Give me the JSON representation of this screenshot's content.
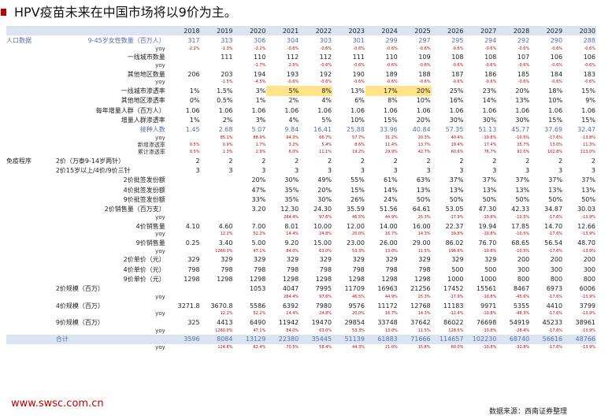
{
  "title": "HPV疫苗未来在中国市场将以9价为主。",
  "footer": {
    "url": "www.swsc.com.cn",
    "source": "数据来源：西南证券整理"
  },
  "years": [
    "2018",
    "2019",
    "2020",
    "2021",
    "2022",
    "2023",
    "2024",
    "2025",
    "2026",
    "2027",
    "2028",
    "2029",
    "2030"
  ],
  "rows": [
    {
      "sec": "人口数据",
      "label": "9-45岁女性数量（百万人）",
      "style": "blue",
      "values": [
        "317",
        "313",
        "306",
        "304",
        "303",
        "301",
        "299",
        "297",
        "295",
        "294",
        "292",
        "290",
        "288"
      ]
    },
    {
      "label": "yoy",
      "style": "yoy",
      "values": [
        "-2.2%",
        "-1.3%",
        "-2.2%",
        "-0.6%",
        "-0.6%",
        "-0.6%",
        "-0.6%",
        "-0.6%",
        "-0.6%",
        "-0.6%",
        "-0.6%",
        "-0.6%",
        "-0.6%"
      ]
    },
    {
      "label": "一线城市数量",
      "values": [
        "111",
        "110",
        "112",
        "112",
        "111",
        "110",
        "109",
        "108",
        "108",
        "107",
        "106",
        "106"
      ],
      "offset": 1
    },
    {
      "label": "yoy",
      "style": "yoy",
      "values": [
        "",
        "-1.7%",
        "2.5%",
        "-0.6%",
        "-0.6%",
        "-0.6%",
        "-0.6%",
        "-0.6%",
        "-0.6%",
        "-0.6%",
        "-0.6%",
        "-0.6%"
      ],
      "offset": 1
    },
    {
      "label": "其他地区数量",
      "values": [
        "206",
        "203",
        "194",
        "193",
        "192",
        "190",
        "189",
        "188",
        "187",
        "186",
        "185",
        "184",
        "183"
      ]
    },
    {
      "label": "yoy",
      "style": "yoy",
      "values": [
        "",
        "-1.5%",
        "-4.5%",
        "-0.6%",
        "-0.6%",
        "-0.6%",
        "-0.6%",
        "-0.6%",
        "-0.6%",
        "-0.6%",
        "-0.6%",
        "-0.6%",
        "-0.6%"
      ]
    },
    {
      "label": "一线城市渗透率",
      "values": [
        "1%",
        "1.5%",
        "3%",
        "5%",
        "8%",
        "13%",
        "17%",
        "20%",
        "25%",
        "23%",
        "20%",
        "18%",
        "15%"
      ],
      "hl": [
        3,
        4,
        6,
        7
      ]
    },
    {
      "label": "其他地区渗透率",
      "values": [
        "0%",
        "0.5%",
        "1%",
        "2%",
        "4%",
        "6%",
        "8%",
        "10%",
        "16%",
        "14%",
        "13%",
        "10%",
        "9%"
      ]
    },
    {
      "label": "每年增量人群（百万人）",
      "values": [
        "1.06",
        "1.06",
        "1.06",
        "1.06",
        "1.06",
        "1.06",
        "1.06",
        "1.06",
        "1.06",
        "1.06",
        "1.06",
        "1.06",
        "1.06"
      ]
    },
    {
      "label": "增量人群渗透率",
      "values": [
        "1%",
        "2%",
        "3%",
        "4%",
        "5%",
        "10%",
        "15%",
        "20%",
        "30%",
        "30%",
        "30%",
        "15%",
        "15%"
      ]
    },
    {
      "label": "接种人数",
      "style": "blue",
      "values": [
        "1.45",
        "2.68",
        "5.07",
        "9.84",
        "16.41",
        "25.88",
        "33.96",
        "40.84",
        "57.35",
        "51.13",
        "45.77",
        "37.69",
        "32.47"
      ]
    },
    {
      "label": "yoy",
      "style": "yoy",
      "values": [
        "",
        "85.1%",
        "88.9%",
        "94.3%",
        "66.7%",
        "57.7%",
        "31.2%",
        "20.3%",
        "40.4%",
        "-10.8%",
        "-10.5%",
        "-17.6%",
        "-13.8%"
      ]
    },
    {
      "label": "新增渗透率",
      "values": [
        "0.5%",
        "0.9%",
        "1.7%",
        "3.2%",
        "5.4%",
        "8.6%",
        "11.4%",
        "13.7%",
        "19.4%",
        "17.4%",
        "15.7%",
        "13.0%",
        "11.3%"
      ],
      "style": "yoy"
    },
    {
      "label": "累计渗透率",
      "values": [
        "0.5%",
        "1.3%",
        "2.9%",
        "6.0%",
        "11.1%",
        "19.2%",
        "29.9%",
        "42.7%",
        "60.6%",
        "76.7%",
        "91.0%",
        "102.8%",
        "113.0%"
      ],
      "style": "yoy"
    },
    {
      "sec": "免疫程序",
      "label": "2价（万泰9-14岁两针）",
      "values": [
        "2",
        "2",
        "2",
        "2",
        "2",
        "2",
        "2",
        "2",
        "2",
        "2",
        "2",
        "2",
        "2"
      ],
      "left": true
    },
    {
      "label": "2价15岁以上/4价/9价三针",
      "values": [
        "3",
        "3",
        "3",
        "3",
        "3",
        "3",
        "3",
        "3",
        "3",
        "3",
        "3",
        "3",
        "3"
      ],
      "left": true
    },
    {
      "label": "2价批签发份额",
      "values": [
        "",
        "",
        "20%",
        "30%",
        "49%",
        "55%",
        "61%",
        "63%",
        "37%",
        "37%",
        "37%",
        "37%",
        "37%"
      ]
    },
    {
      "label": "4价批签发份额",
      "values": [
        "",
        "",
        "47%",
        "35%",
        "20%",
        "15%",
        "14%",
        "13%",
        "13%",
        "13%",
        "13%",
        "13%",
        "13%"
      ]
    },
    {
      "label": "9价批签发份额",
      "values": [
        "",
        "",
        "33%",
        "35%",
        "30%",
        "26%",
        "24%",
        "50%",
        "50%",
        "50%",
        "50%",
        "50%",
        "50%"
      ]
    },
    {
      "label": "2价销售量（百万支）",
      "values": [
        "",
        "",
        "3.20",
        "12.30",
        "24.30",
        "35.59",
        "51.56",
        "64.61",
        "53.05",
        "47.30",
        "42.33",
        "34.87",
        "30.03"
      ]
    },
    {
      "label": "yoy",
      "style": "yoy",
      "values": [
        "",
        "",
        "",
        "284.4%",
        "97.6%",
        "46.5%",
        "44.9%",
        "25.3%",
        "-17.9%",
        "-10.8%",
        "-10.5%",
        "-17.6%",
        "-13.9%"
      ]
    },
    {
      "label": "4价销售量",
      "values": [
        "4.10",
        "4.60",
        "7.00",
        "8.01",
        "10.00",
        "12.00",
        "14.00",
        "16.00",
        "22.37",
        "19.94",
        "17.85",
        "14.70",
        "12.66"
      ]
    },
    {
      "label": "yoy",
      "style": "yoy",
      "values": [
        "",
        "12.2%",
        "52.2%",
        "14.4%",
        "24.8%",
        "20.0%",
        "16.7%",
        "14.3%",
        "39.8%",
        "-10.8%",
        "-10.5%",
        "-17.6%",
        "-13.9%"
      ]
    },
    {
      "label": "9价销售量",
      "values": [
        "0.25",
        "3.40",
        "5.00",
        "9.20",
        "15.00",
        "23.00",
        "26.00",
        "29.00",
        "86.02",
        "76.70",
        "68.65",
        "56.54",
        "48.70"
      ]
    },
    {
      "label": "yoy",
      "style": "yoy",
      "values": [
        "",
        "1260.0%",
        "47.1%",
        "84.0%",
        "63.0%",
        "53.3%",
        "13.0%",
        "11.5%",
        "196.6%",
        "-10.8%",
        "-10.5%",
        "-17.6%",
        "-13.9%"
      ]
    },
    {
      "label": "2价单价（元）",
      "values": [
        "329",
        "329",
        "329",
        "329",
        "329",
        "329",
        "329",
        "329",
        "329",
        "329",
        "200",
        "200",
        "200"
      ]
    },
    {
      "label": "4价单价（元）",
      "values": [
        "798",
        "798",
        "798",
        "798",
        "798",
        "798",
        "798",
        "798",
        "500",
        "500",
        "300",
        "300",
        "300"
      ]
    },
    {
      "label": "9价单价（元）",
      "values": [
        "1298",
        "1298",
        "1298",
        "1298",
        "1298",
        "1298",
        "1298",
        "1298",
        "1000",
        "1000",
        "800",
        "800",
        "800"
      ]
    },
    {
      "label": "2价规模（百万）",
      "values": [
        "",
        "",
        "1053",
        "4047",
        "7995",
        "11709",
        "16963",
        "21256",
        "17452",
        "15561",
        "8467",
        "6973",
        "6006"
      ],
      "left": true
    },
    {
      "label": "yoy",
      "style": "yoy",
      "values": [
        "",
        "",
        "",
        "284.4%",
        "97.6%",
        "46.5%",
        "44.9%",
        "25.3%",
        "-17.9%",
        "-10.8%",
        "-45.6%",
        "-17.6%",
        "-13.9%"
      ]
    },
    {
      "label": "4价规模（百万）",
      "values": [
        "3271.8",
        "3670.8",
        "5586",
        "6392",
        "7980",
        "9576",
        "11172",
        "12768",
        "11183",
        "9971",
        "5355",
        "4410",
        "3799"
      ],
      "left": true
    },
    {
      "label": "yoy",
      "style": "yoy",
      "values": [
        "",
        "12.2%",
        "52.2%",
        "14.4%",
        "24.8%",
        "20.0%",
        "16.7%",
        "14.3%",
        "-12.4%",
        "-10.8%",
        "-46.3%",
        "-17.6%",
        "-13.9%"
      ]
    },
    {
      "label": "9价规模（百万）",
      "values": [
        "325",
        "4413",
        "6490",
        "11942",
        "19470",
        "29854",
        "33748",
        "37642",
        "86022",
        "76698",
        "54919",
        "45233",
        "38961"
      ],
      "left": true
    },
    {
      "label": "yoy",
      "style": "yoy",
      "values": [
        "",
        "1260.0%",
        "47.1%",
        "84.0%",
        "63.0%",
        "53.3%",
        "13.0%",
        "11.5%",
        "128.5%",
        "-10.8%",
        "-28.4%",
        "-17.6%",
        "-13.9%"
      ]
    },
    {
      "label": "合计",
      "style": "total",
      "values": [
        "3596",
        "8084",
        "13129",
        "22380",
        "35445",
        "51139",
        "61883",
        "71666",
        "114657",
        "102230",
        "68740",
        "56616",
        "48766"
      ],
      "left": true
    },
    {
      "label": "yoy",
      "style": "yoy",
      "values": [
        "",
        "124.8%",
        "62.4%",
        "70.5%",
        "58.4%",
        "44.3%",
        "21.0%",
        "15.8%",
        "60.0%",
        "-10.8%",
        "-32.8%",
        "-17.6%",
        "-13.9%"
      ]
    }
  ]
}
